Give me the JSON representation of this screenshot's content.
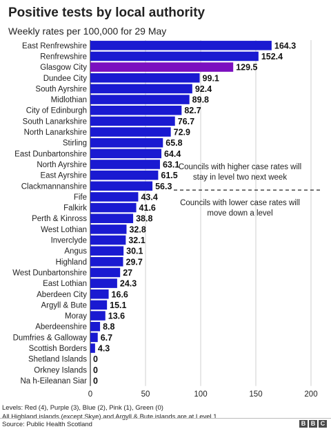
{
  "chart_data": {
    "type": "bar",
    "orientation": "horizontal",
    "title": "Positive tests by local authority",
    "subtitle": "Weekly rates per 100,000 for 29 May",
    "categories": [
      "East Renfrewshire",
      "Renfrewshire",
      "Glasgow City",
      "Dundee City",
      "South Ayrshire",
      "Midlothian",
      "City of Edinburgh",
      "South Lanarkshire",
      "North Lanarkshire",
      "Stirling",
      "East Dunbartonshire",
      "North Ayrshire",
      "East Ayrshire",
      "Clackmannanshire",
      "Fife",
      "Falkirk",
      "Perth & Kinross",
      "West Lothian",
      "Inverclyde",
      "Angus",
      "Highland",
      "West Dunbartonshire",
      "East Lothian",
      "Aberdeen City",
      "Argyll & Bute",
      "Moray",
      "Aberdeenshire",
      "Dumfries & Galloway",
      "Scottish Borders",
      "Shetland Islands",
      "Orkney Islands",
      "Na h-Eileanan Siar"
    ],
    "values": [
      164.3,
      152.4,
      129.5,
      99.1,
      92.4,
      89.8,
      82.7,
      76.7,
      72.9,
      65.8,
      64.4,
      63.1,
      61.5,
      56.3,
      43.4,
      41.6,
      38.8,
      32.8,
      32.1,
      30.1,
      29.7,
      27,
      24.3,
      16.6,
      15.1,
      13.6,
      8.8,
      6.7,
      4.3,
      0,
      0,
      0
    ],
    "value_labels": [
      "164.3",
      "152.4",
      "129.5",
      "99.1",
      "92.4",
      "89.8",
      "82.7",
      "76.7",
      "72.9",
      "65.8",
      "64.4",
      "63.1",
      "61.5",
      "56.3",
      "43.4",
      "41.6",
      "38.8",
      "32.8",
      "32.1",
      "30.1",
      "29.7",
      "27",
      "24.3",
      "16.6",
      "15.1",
      "13.6",
      "8.8",
      "6.7",
      "4.3",
      "0",
      "0",
      "0"
    ],
    "bar_colors": [
      "#1a1ad1",
      "#1a1ad1",
      "#7b0fbf",
      "#1a1ad1",
      "#1a1ad1",
      "#1a1ad1",
      "#1a1ad1",
      "#1a1ad1",
      "#1a1ad1",
      "#1a1ad1",
      "#1a1ad1",
      "#1a1ad1",
      "#1a1ad1",
      "#1a1ad1",
      "#1a1ad1",
      "#1a1ad1",
      "#1a1ad1",
      "#1a1ad1",
      "#1a1ad1",
      "#1a1ad1",
      "#1a1ad1",
      "#1a1ad1",
      "#1a1ad1",
      "#1a1ad1",
      "#1a1ad1",
      "#1a1ad1",
      "#1a1ad1",
      "#1a1ad1",
      "#1a1ad1",
      "#1a1ad1",
      "#1a1ad1",
      "#1a1ad1"
    ],
    "xlim": [
      0,
      200
    ],
    "xticks": [
      0,
      50,
      100,
      150,
      200
    ],
    "grid": true,
    "threshold_between": [
      "Clackmannanshire",
      "Fife"
    ],
    "annotation_above": [
      "Councils with higher case rates will",
      "stay in level two next week"
    ],
    "annotation_below": [
      "Councils with lower case rates will",
      "move down a level"
    ]
  },
  "notes": {
    "line1": "Levels: Red (4), Purple (3), Blue (2), Pink (1), Green (0)",
    "line2": "All Highland islands (except Skye) and Argyll & Bute islands are at Level 1"
  },
  "source": "Source: Public Health Scotland",
  "logo": [
    "B",
    "B",
    "C"
  ]
}
